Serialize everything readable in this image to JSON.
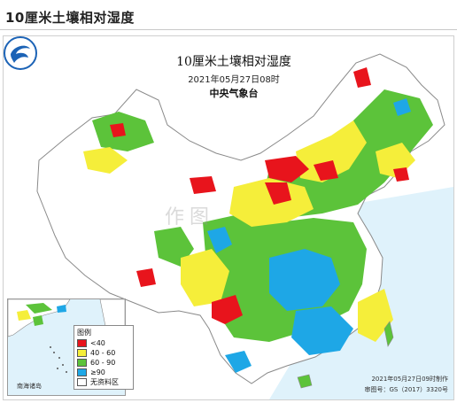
{
  "page": {
    "heading": "10厘米土壤相对湿度"
  },
  "map": {
    "title": "10厘米土壤相对湿度",
    "datetime": "2021年05月27日08时",
    "agency": "中央气象台",
    "logo_icon": "cma-logo-icon",
    "watermark": "作图",
    "inset_label": "南海诸岛",
    "issue_note": "2021年05月27日09时制作",
    "approval_note": "审图号：GS（2017）3320号"
  },
  "legend": {
    "title": "图例",
    "items": [
      {
        "label": "<40",
        "color": "#e8141c"
      },
      {
        "label": "40 - 60",
        "color": "#f5ee3a"
      },
      {
        "label": "60 - 90",
        "color": "#5cc33a"
      },
      {
        "label": "≥90",
        "color": "#1ea7e6"
      },
      {
        "label": "无资料区",
        "color": "#ffffff"
      }
    ]
  },
  "colors": {
    "sea": "#dff2fb",
    "border": "#8a8a8a",
    "land_outside": "#f3f3f3"
  }
}
